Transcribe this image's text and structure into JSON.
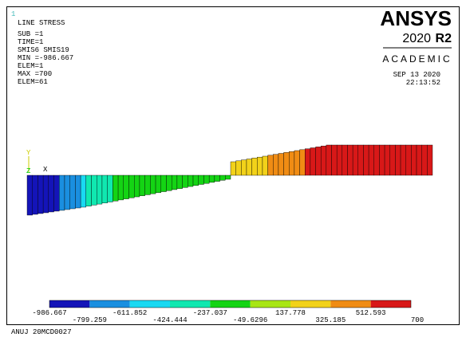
{
  "window_number": "1",
  "info": [
    "LINE STRESS",
    "SUB =1",
    "TIME=1",
    "SMIS6    SMIS19",
    "MIN =-986.667",
    "ELEM=1",
    "MAX =700",
    "ELEM=61"
  ],
  "logo": {
    "brand": "ANSYS",
    "version": "2020",
    "release": "R2",
    "edition": "ACADEMIC"
  },
  "date": "SEP 13 2020",
  "time": "22:13:52",
  "axes": {
    "y": "Y",
    "z": "Z",
    "x": "X"
  },
  "legend_labels": [
    "-986.667",
    "-799.259",
    "-611.852",
    "-424.444",
    "-237.037",
    "-49.6296",
    "137.778",
    "325.185",
    "512.593",
    "700"
  ],
  "footer": "ANUJ 20MCD0027"
}
